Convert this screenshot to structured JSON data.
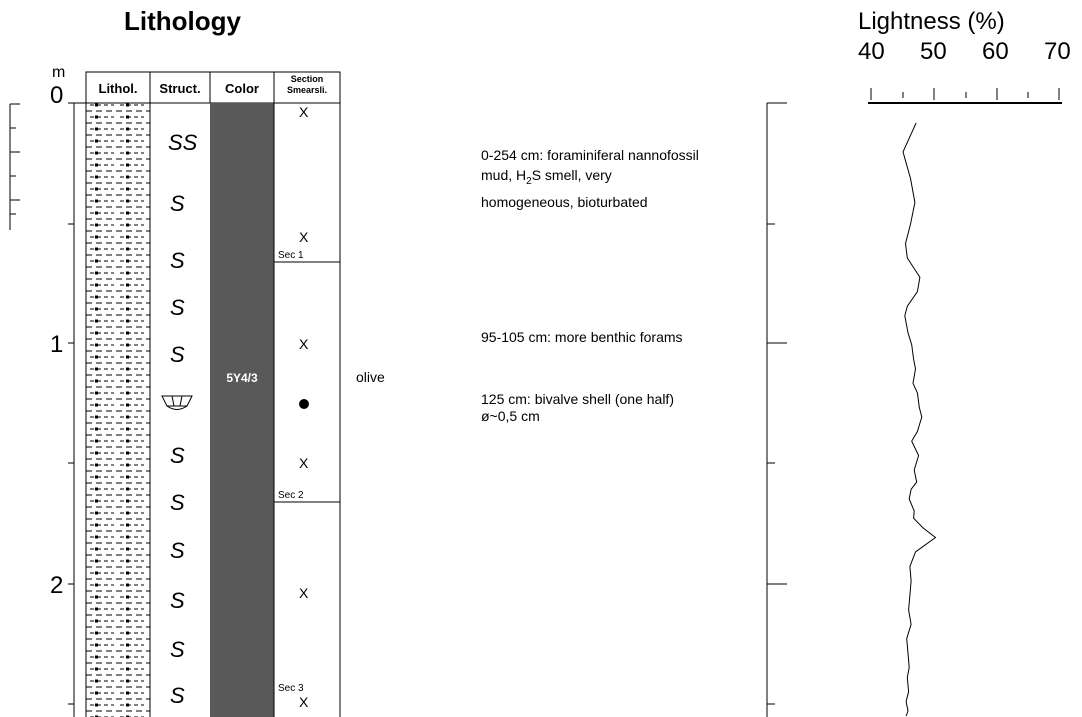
{
  "title": "Lithology",
  "depth_unit": "m",
  "depth_labels": [
    "0",
    "1",
    "2"
  ],
  "columns": {
    "lithol": "Lithol.",
    "struct": "Struct.",
    "color": "Color",
    "section_line1": "Section",
    "section_line2": "Smearsli."
  },
  "structures": [
    "SS",
    "S",
    "S",
    "S",
    "S",
    "S",
    "S",
    "S",
    "S",
    "S",
    "S"
  ],
  "color_code": "5Y4/3",
  "color_name": "olive",
  "column_fill": "#595959",
  "smear_markers": [
    "X",
    "X",
    "X",
    "X",
    "X"
  ],
  "sections": [
    "Sec 1",
    "Sec 2",
    "Sec 3"
  ],
  "descriptions": {
    "d1_line1": "0-254 cm: foraminiferal nannofossil",
    "d1_line2_pre": "mud, H",
    "d1_line2_sub": "2",
    "d1_line2_post": "S smell, very",
    "d1_line3": "homogeneous, bioturbated",
    "d2": "95-105 cm: more benthic forams",
    "d3_line1": "125 cm: bivalve shell (one half)",
    "d3_line2": "ø~0,5 cm"
  },
  "chart_data": {
    "type": "line",
    "title": "Lightness (%)",
    "xlabel": "Lightness (%)",
    "ylabel": "m",
    "xlim": [
      40,
      70
    ],
    "ylim": [
      2.47,
      0
    ],
    "x_ticks": [
      "40",
      "50",
      "60",
      "70"
    ],
    "series": [
      {
        "x": [
          47.2,
          45.1,
          46.3,
          47.0,
          46.3,
          45.5,
          45.8,
          47.8,
          47.4,
          45.8,
          45.4,
          45.9,
          46.5,
          46.8,
          47.1,
          46.7,
          47.4,
          47.7,
          48.1,
          47.4,
          46.5,
          47.6,
          46.9,
          47.3,
          46.4,
          46.1,
          46.9,
          46.8,
          48.3,
          50.3,
          47.1,
          46.2,
          46.4,
          46.2,
          46.0,
          46.4,
          45.7,
          45.9,
          46.1,
          45.8,
          46.0,
          45.6,
          45.9,
          45.6
        ],
        "y": [
          0,
          0.12,
          0.23,
          0.33,
          0.42,
          0.5,
          0.56,
          0.64,
          0.7,
          0.76,
          0.8,
          0.87,
          0.92,
          0.98,
          1.02,
          1.08,
          1.12,
          1.18,
          1.22,
          1.28,
          1.32,
          1.38,
          1.44,
          1.49,
          1.52,
          1.56,
          1.61,
          1.64,
          1.68,
          1.72,
          1.78,
          1.84,
          1.9,
          1.96,
          2.02,
          2.08,
          2.14,
          2.2,
          2.26,
          2.3,
          2.36,
          2.4,
          2.44,
          2.47
        ]
      }
    ]
  }
}
